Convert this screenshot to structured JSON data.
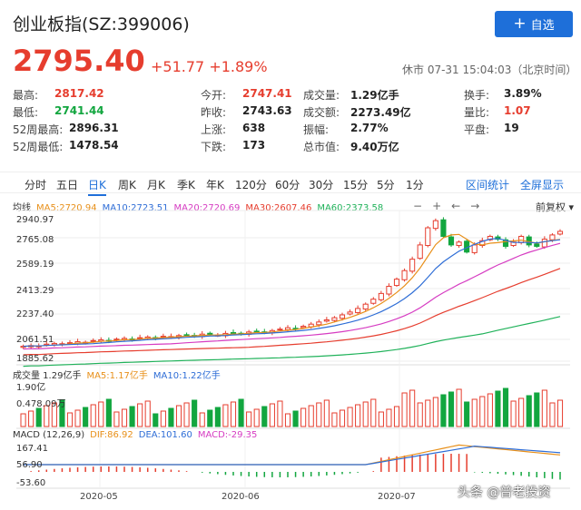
{
  "header": {
    "title": "创业板指(SZ:399006)",
    "add_label": "自选",
    "add_icon": "plus-icon"
  },
  "quote": {
    "price": "2795.40",
    "change": "+51.77",
    "change_pct": "+1.89%",
    "status": "休市 07-31 15:04:03（北京时间）"
  },
  "stats": [
    [
      {
        "label": "最高:",
        "value": "2817.42",
        "color": "red"
      },
      {
        "label": "今开:",
        "value": "2747.41",
        "color": "red"
      },
      {
        "label": "成交量:",
        "value": "1.29亿手",
        "color": "black"
      },
      {
        "label": "换手:",
        "value": "3.89%",
        "color": "black"
      }
    ],
    [
      {
        "label": "最低:",
        "value": "2741.44",
        "color": "green"
      },
      {
        "label": "昨收:",
        "value": "2743.63",
        "color": "black"
      },
      {
        "label": "成交额:",
        "value": "2273.49亿",
        "color": "black"
      },
      {
        "label": "量比:",
        "value": "1.07",
        "color": "red"
      }
    ],
    [
      {
        "label": "52周最高:",
        "value": "2896.31",
        "color": "black"
      },
      {
        "label": "上涨:",
        "value": "638",
        "color": "black"
      },
      {
        "label": "振幅:",
        "value": "2.77%",
        "color": "black"
      },
      {
        "label": "平盘:",
        "value": "19",
        "color": "black"
      }
    ],
    [
      {
        "label": "52周最低:",
        "value": "1478.54",
        "color": "black"
      },
      {
        "label": "下跌:",
        "value": "173",
        "color": "black"
      },
      {
        "label": "总市值:",
        "value": "9.40万亿",
        "color": "black"
      }
    ]
  ],
  "tabs": [
    "分时",
    "五日",
    "日K",
    "周K",
    "月K",
    "季K",
    "年K",
    "120分",
    "60分",
    "30分",
    "15分",
    "5分",
    "1分"
  ],
  "active_tab": "日K",
  "right_tabs": [
    "区间统计",
    "全屏显示"
  ],
  "ma_legend": [
    {
      "text": "均线",
      "color": "#333333"
    },
    {
      "text": "MA5:2720.94",
      "color": "#e8901a"
    },
    {
      "text": "MA10:2723.51",
      "color": "#2e6dd6"
    },
    {
      "text": "MA20:2720.69",
      "color": "#d63cc2"
    },
    {
      "text": "MA30:2607.46",
      "color": "#e63d2e"
    },
    {
      "text": "MA60:2373.58",
      "color": "#20b25a"
    }
  ],
  "tools": [
    "−",
    "+",
    "←",
    "→"
  ],
  "adjust_label": "前复权",
  "price_axis": [
    "2940.97",
    "2765.08",
    "2589.19",
    "2413.29",
    "2237.40",
    "2061.51",
    "1885.62"
  ],
  "annotations": {
    "high": "2896.31",
    "low": "1967.40"
  },
  "volume": {
    "legend": [
      {
        "text": "成交量 1.29亿手",
        "color": "#333333"
      },
      {
        "text": "MA5:1.17亿手",
        "color": "#e8901a"
      },
      {
        "text": "MA10:1.22亿手",
        "color": "#2e6dd6"
      }
    ],
    "axis": [
      "1.90亿",
      "0.478.09万"
    ]
  },
  "macd": {
    "legend": [
      {
        "text": "MACD (12,26,9)",
        "color": "#333333"
      },
      {
        "text": "DIF:86.92",
        "color": "#e8901a"
      },
      {
        "text": "DEA:101.60",
        "color": "#2e6dd6"
      },
      {
        "text": "MACD:-29.35",
        "color": "#d63cc2"
      }
    ],
    "axis": [
      "167.41",
      "56.90",
      "-53.60"
    ]
  },
  "x_axis": [
    "2020-05",
    "2020-06",
    "2020-07"
  ],
  "watermark": "头条 @普老投资",
  "colors": {
    "up": "#e63d2e",
    "down": "#12a63f",
    "accent": "#1e6fd9"
  },
  "chart_data": {
    "type": "candlestick",
    "ylim": [
      1885.62,
      2940.97
    ],
    "closes": [
      1990,
      1995,
      1992,
      2005,
      2010,
      2008,
      2015,
      2022,
      2018,
      2030,
      2035,
      2028,
      2040,
      2045,
      2038,
      2050,
      2055,
      2048,
      2060,
      2058,
      2065,
      2070,
      2062,
      2075,
      2072,
      2068,
      2080,
      2085,
      2078,
      2090,
      2095,
      2088,
      2100,
      2110,
      2120,
      2115,
      2130,
      2145,
      2160,
      2175,
      2190,
      2210,
      2230,
      2255,
      2285,
      2320,
      2360,
      2410,
      2460,
      2520,
      2600,
      2700,
      2820,
      2870,
      2760,
      2700,
      2720,
      2650,
      2700,
      2730,
      2760,
      2740,
      2690,
      2720,
      2760,
      2700,
      2690,
      2740,
      2770,
      2795
    ]
  }
}
